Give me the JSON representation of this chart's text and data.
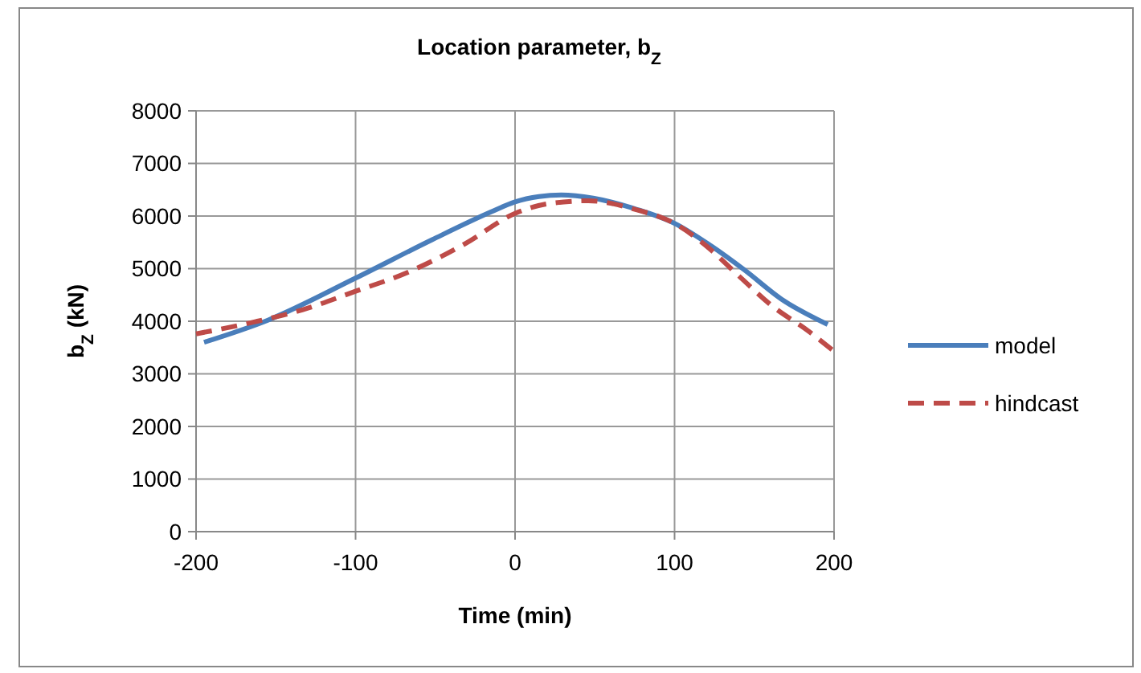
{
  "chart_data": {
    "type": "line",
    "title": "Location parameter, b$_{Z}$",
    "xlabel": "Time (min)",
    "ylabel": "b$_{Z}$ (kN)",
    "xlim": [
      -200,
      200
    ],
    "xticks": [
      -200,
      -100,
      0,
      100,
      200
    ],
    "ylim": [
      0,
      8000
    ],
    "yticks": [
      0,
      1000,
      2000,
      3000,
      4000,
      5000,
      6000,
      7000,
      8000
    ],
    "grid": true,
    "legend": "right",
    "series": [
      {
        "name": "model",
        "color": "#4a7ebb",
        "line_style": "solid",
        "x": [
          -195,
          -155,
          -100,
          -52,
          -15,
          0,
          15,
          29,
          49,
          76,
          100,
          123,
          144,
          167,
          196
        ],
        "values": [
          3600,
          4020,
          4820,
          5550,
          6080,
          6270,
          6370,
          6400,
          6340,
          6130,
          5860,
          5430,
          4970,
          4420,
          3940
        ]
      },
      {
        "name": "hindcast",
        "color": "#be4b48",
        "line_style": "dashed",
        "x": [
          -200,
          -163,
          -133,
          -100,
          -68,
          -31,
          0,
          22,
          46,
          76,
          100,
          120,
          140,
          160,
          184,
          200
        ],
        "values": [
          3760,
          3990,
          4220,
          4570,
          4920,
          5480,
          6050,
          6240,
          6290,
          6120,
          5860,
          5430,
          4870,
          4320,
          3810,
          3430
        ]
      }
    ]
  }
}
